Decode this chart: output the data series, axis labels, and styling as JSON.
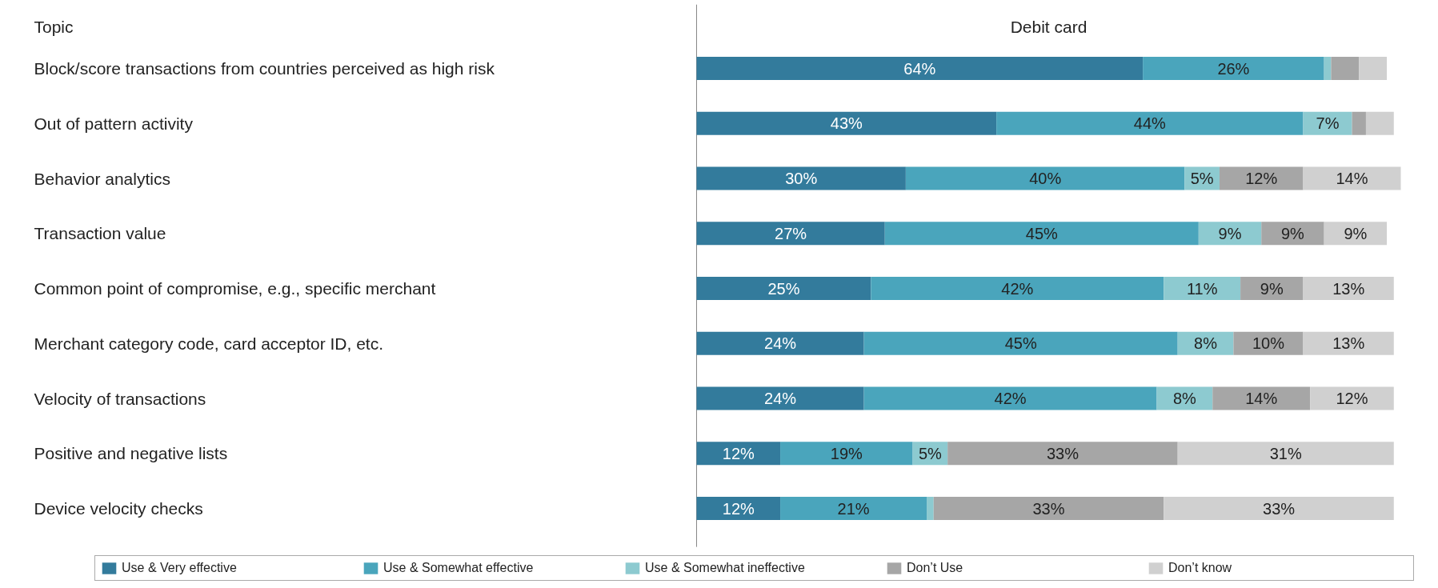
{
  "chart_data": {
    "type": "bar",
    "orientation": "horizontal",
    "stacked": true,
    "title": "Debit card",
    "ylabel": "Topic",
    "categories": [
      "Block/score transactions from countries perceived as high risk",
      "Out of pattern activity",
      "Behavior analytics",
      "Transaction value",
      "Common point of compromise, e.g., specific merchant",
      "Merchant category code, card acceptor ID, etc.",
      "Velocity of transactions",
      "Positive and negative lists",
      "Device velocity checks"
    ],
    "series": [
      {
        "name": "Use & Very effective",
        "color": "#337b9c",
        "values": [
          64,
          43,
          30,
          27,
          25,
          24,
          24,
          12,
          12
        ],
        "value_labels": [
          "64%",
          "43%",
          "30%",
          "27%",
          "25%",
          "24%",
          "24%",
          "12%",
          "12%"
        ]
      },
      {
        "name": "Use & Somewhat effective",
        "color": "#4aa5bc",
        "values": [
          26,
          44,
          40,
          45,
          42,
          45,
          42,
          19,
          21
        ],
        "value_labels": [
          "26%",
          "44%",
          "40%",
          "45%",
          "42%",
          "45%",
          "42%",
          "19%",
          "21%"
        ]
      },
      {
        "name": "Use & Somewhat ineffective",
        "color": "#8dcad0",
        "values": [
          1,
          7,
          5,
          9,
          11,
          8,
          8,
          5,
          1
        ],
        "value_labels": [
          null,
          "7%",
          "5%",
          "9%",
          "11%",
          "8%",
          "8%",
          "5%",
          null
        ]
      },
      {
        "name": "Don’t Use",
        "color": "#a6a6a6",
        "values": [
          4,
          2,
          12,
          9,
          9,
          10,
          14,
          33,
          33
        ],
        "value_labels": [
          null,
          null,
          "12%",
          "9%",
          "9%",
          "10%",
          "14%",
          "33%",
          "33%"
        ]
      },
      {
        "name": "Don’t know",
        "color": "#d0d0d0",
        "values": [
          4,
          4,
          14,
          9,
          13,
          13,
          12,
          31,
          33
        ],
        "value_labels": [
          null,
          null,
          "14%",
          "9%",
          "13%",
          "13%",
          "12%",
          "31%",
          "33%"
        ]
      }
    ],
    "xlim": [
      0,
      101
    ],
    "tick_labels": "y",
    "grid": false,
    "legend": "bottom"
  }
}
